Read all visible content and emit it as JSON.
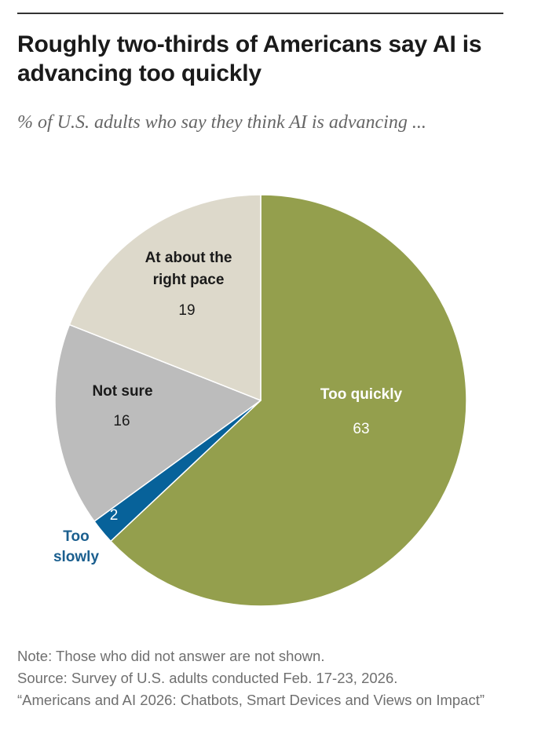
{
  "header": {
    "title": "Roughly two-thirds of Americans say AI is advancing too quickly",
    "subtitle": "% of U.S. adults who say they think AI is advancing ..."
  },
  "chart_data": {
    "type": "pie",
    "title": "Roughly two-thirds of Americans say AI is advancing too quickly",
    "subtitle": "% of U.S. adults who say they think AI is advancing ...",
    "slices": [
      {
        "label": "Too quickly",
        "value": 63,
        "color": "#949f4d"
      },
      {
        "label": "Too slowly",
        "value": 2,
        "color": "#07629a"
      },
      {
        "label": "Not sure",
        "value": 16,
        "color": "#bcbcbc"
      },
      {
        "label": "At about the right pace",
        "value": 19,
        "color": "#ddd9cb"
      }
    ],
    "start": "12 o'clock",
    "direction": "clockwise",
    "legend": "none"
  },
  "footer": {
    "note": "Note: Those who did not answer are not shown.",
    "source": "Source: Survey of U.S. adults conducted Feb. 17-23, 2026.",
    "report": "“Americans and AI 2026: Chatbots, Smart Devices and Views on Impact”"
  },
  "colors": {
    "too_quickly": "#949f4d",
    "too_slowly": "#07629a",
    "not_sure": "#bcbcbc",
    "right_pace": "#ddd9cb",
    "text_dark": "#1a1a1a",
    "text_muted": "#6f6f6f",
    "label_blue": "#1b5f8f"
  }
}
